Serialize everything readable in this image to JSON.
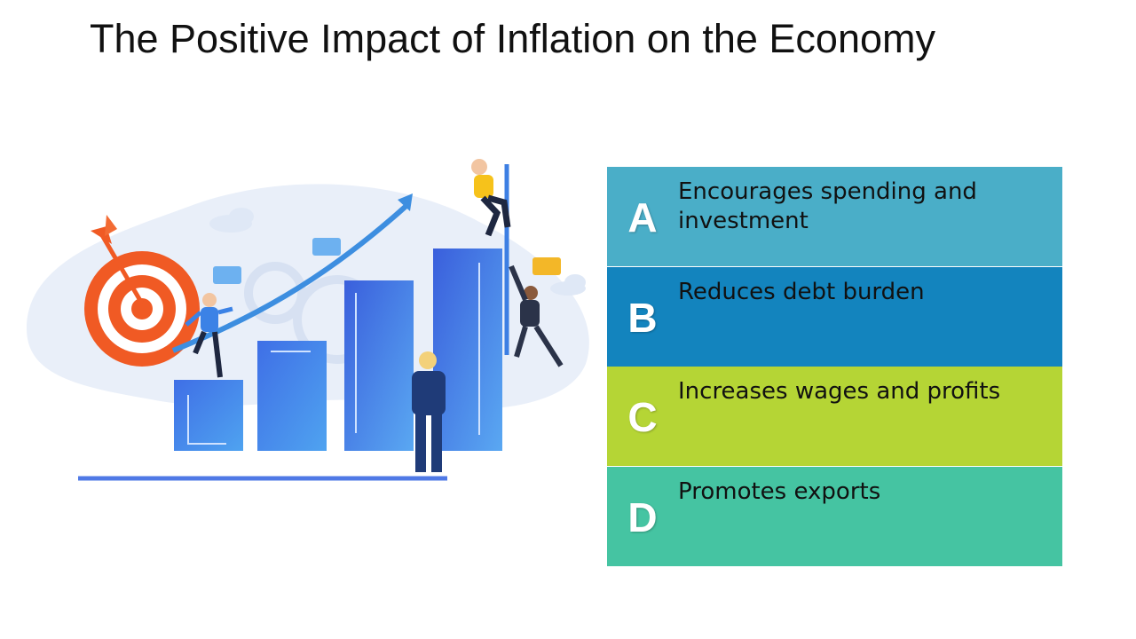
{
  "slide": {
    "title": "The Positive Impact of Inflation on the Economy"
  },
  "items": [
    {
      "letter": "A",
      "text": "Encourages spending and investment",
      "color": "#4aaec8"
    },
    {
      "letter": "B",
      "text": "Reduces debt burden",
      "color": "#1384be"
    },
    {
      "letter": "C",
      "text": "Increases wages and profits",
      "color": "#b5d535"
    },
    {
      "letter": "D",
      "text": "Promotes exports",
      "color": "#45c4a2"
    }
  ],
  "illustration": {
    "accent_colors": {
      "bars": "#3f7fe8",
      "target": "#f05a24",
      "arrow": "#3d8ee0",
      "backdrop": "#e8eef9"
    }
  }
}
